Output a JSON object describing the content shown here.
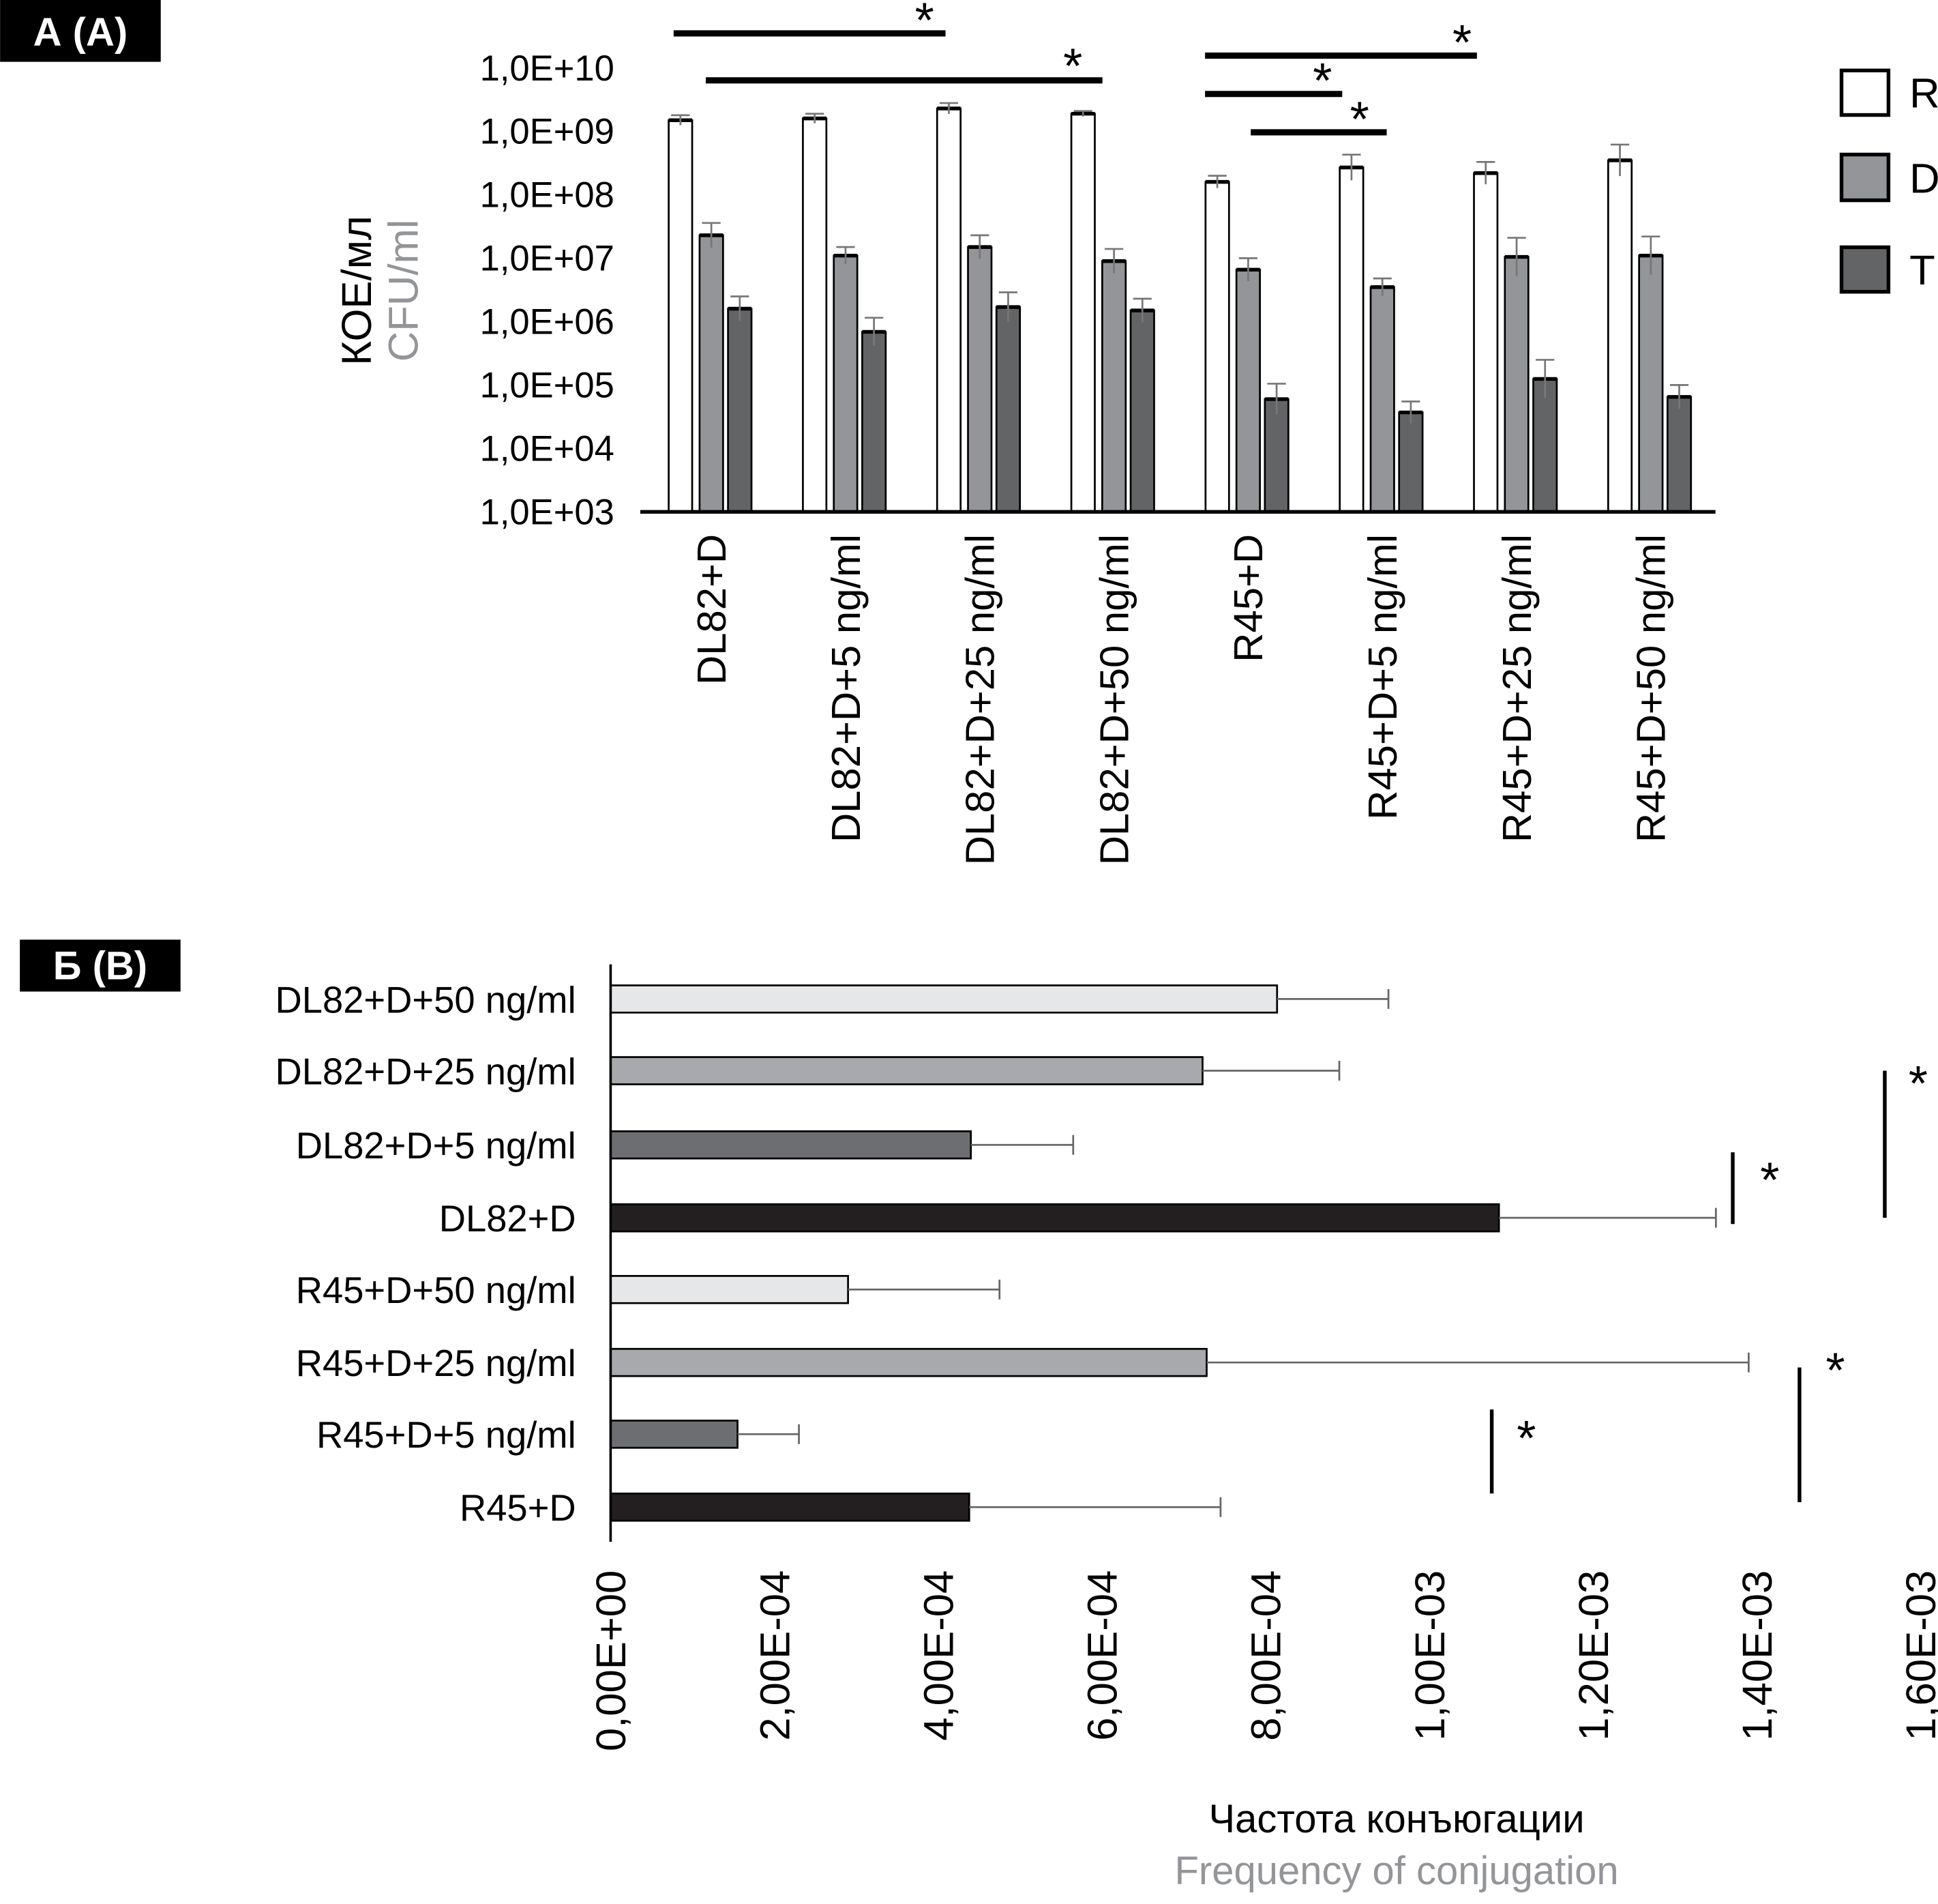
{
  "chart_data": [
    {
      "type": "bar",
      "panel_label": "А (А)",
      "ylabel": "КОЕ/мл",
      "ylabel_en": "CFU/ml",
      "yscale": "log",
      "ylim": [
        1000,
        10000000000
      ],
      "yticks": [
        "1,0E+03",
        "1,0E+04",
        "1,0E+05",
        "1,0E+06",
        "1,0E+07",
        "1,0E+08",
        "1,0E+09",
        "1,0E+10"
      ],
      "categories": [
        "DL82+D",
        "DL82+D+5 ng/ml",
        "DL82+D+25 ng/ml",
        "DL82+D+50 ng/ml",
        "R45+D",
        "R45+D+5 ng/ml",
        "R45+D+25 ng/ml",
        "R45+D+50 ng/ml"
      ],
      "legend_position": "right",
      "series": [
        {
          "name": "R",
          "color": "#ffffff",
          "values": [
            1500000000.0,
            1600000000.0,
            2300000000.0,
            1900000000.0,
            160000000.0,
            270000000.0,
            220000000.0,
            350000000.0
          ],
          "err_high": [
            1800000000.0,
            1900000000.0,
            2800000000.0,
            2100000000.0,
            200000000.0,
            430000000.0,
            330000000.0,
            620000000.0
          ]
        },
        {
          "name": "D",
          "color": "#939598",
          "values": [
            23000000.0,
            11000000.0,
            15000000.0,
            9000000.0,
            6600000.0,
            3500000.0,
            10500000.0,
            11000000.0
          ],
          "err_high": [
            36000000.0,
            15000000.0,
            23000000.0,
            14000000.0,
            10000000.0,
            4800000.0,
            21000000.0,
            22000000.0
          ]
        },
        {
          "name": "T",
          "color": "#636466",
          "values": [
            1600000.0,
            690000.0,
            1700000.0,
            1500000.0,
            60000.0,
            37000.0,
            125000.0,
            65000.0
          ],
          "err_high": [
            2500000.0,
            1150000.0,
            2900000.0,
            2300000.0,
            105000.0,
            55000.0,
            250000.0,
            100000.0
          ]
        }
      ],
      "significance": [
        {
          "from": 0,
          "to": 2,
          "label": "*"
        },
        {
          "from": 0,
          "to": 3,
          "label": "*"
        },
        {
          "from": 4,
          "to": 6,
          "label": "*"
        },
        {
          "from": 4,
          "to": 5,
          "label": "*"
        },
        {
          "from": 4,
          "to": 5,
          "label": "*"
        }
      ]
    },
    {
      "type": "bar",
      "orientation": "horizontal",
      "panel_label": "Б (B)",
      "xlabel": "Частота конъюгации",
      "xlabel_en": "Frequency of conjugation",
      "xlim": [
        0,
        0.0016
      ],
      "xticks": [
        "0,00E+00",
        "2,00E-04",
        "4,00E-04",
        "6,00E-04",
        "8,00E-04",
        "1,00E-03",
        "1,20E-03",
        "1,40E-03",
        "1,60E-03"
      ],
      "categories": [
        "DL82+D+50 ng/ml",
        "DL82+D+25 ng/ml",
        "DL82+D+5 ng/ml",
        "DL82+D",
        "R45+D+50 ng/ml",
        "R45+D+25 ng/ml",
        "R45+D+5 ng/ml",
        "R45+D"
      ],
      "colors": [
        "#e6e7e8",
        "#a7a9ac",
        "#6d6e71",
        "#231f20",
        "#e6e7e8",
        "#a7a9ac",
        "#6d6e71",
        "#231f20"
      ],
      "values": [
        0.000814,
        0.000723,
        0.00044,
        0.001085,
        0.00029,
        0.000728,
        0.000155,
        0.000438
      ],
      "err_high": [
        0.00095,
        0.00089,
        0.000565,
        0.00135,
        0.000475,
        0.00139,
        0.00023,
        0.000745
      ],
      "significance": [
        {
          "rows": [
            1,
            3
          ],
          "label": "*"
        },
        {
          "rows": [
            2,
            3
          ],
          "label": "*"
        },
        {
          "rows": [
            5,
            7
          ],
          "label": "*"
        },
        {
          "rows": [
            6,
            7
          ],
          "label": "*"
        }
      ]
    }
  ]
}
